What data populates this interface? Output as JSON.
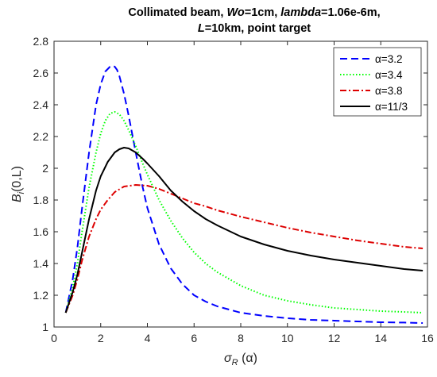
{
  "chart_data": {
    "type": "line",
    "title_line1": [
      "Collimated beam, ",
      "Wo",
      "=1cm, ",
      "lambda",
      "=1.06e-6m,"
    ],
    "title_line2": [
      "L",
      "=10km, point target"
    ],
    "xlabel": {
      "main": "σ",
      "sub": "R",
      "rest": " (α)"
    },
    "ylabel": {
      "main": "B",
      "sub": "i",
      "rest": "(0,L)"
    },
    "xlim": [
      0,
      16
    ],
    "ylim": [
      1,
      2.8
    ],
    "xticks": [
      "0",
      "2",
      "4",
      "6",
      "8",
      "10",
      "12",
      "14",
      "16"
    ],
    "yticks": [
      "1",
      "1.2",
      "1.4",
      "1.6",
      "1.8",
      "2",
      "2.2",
      "2.4",
      "2.6",
      "2.8"
    ],
    "grid": false,
    "legend_position": "top-right",
    "series": [
      {
        "name": "α=3.2",
        "color": "#0000ff",
        "style": "dashed",
        "x": [
          0.5,
          0.8,
          1.0,
          1.2,
          1.5,
          1.8,
          2.0,
          2.2,
          2.4,
          2.5,
          2.6,
          2.7,
          2.8,
          3.0,
          3.2,
          3.5,
          3.8,
          4.0,
          4.5,
          5.0,
          5.5,
          6.0,
          6.5,
          7.0,
          8.0,
          9.0,
          10.0,
          11.0,
          12.0,
          13.0,
          14.0,
          15.0,
          15.8
        ],
        "y": [
          1.09,
          1.3,
          1.5,
          1.75,
          2.1,
          2.4,
          2.53,
          2.61,
          2.64,
          2.645,
          2.64,
          2.62,
          2.58,
          2.47,
          2.33,
          2.1,
          1.88,
          1.75,
          1.52,
          1.37,
          1.27,
          1.2,
          1.16,
          1.13,
          1.09,
          1.07,
          1.055,
          1.045,
          1.04,
          1.035,
          1.03,
          1.028,
          1.025
        ]
      },
      {
        "name": "α=3.4",
        "color": "#00ff00",
        "style": "dotted",
        "x": [
          0.5,
          0.8,
          1.0,
          1.2,
          1.5,
          1.8,
          2.0,
          2.2,
          2.4,
          2.6,
          2.8,
          3.0,
          3.2,
          3.5,
          3.8,
          4.0,
          4.5,
          5.0,
          5.5,
          6.0,
          6.5,
          7.0,
          8.0,
          9.0,
          10.0,
          11.0,
          12.0,
          13.0,
          14.0,
          15.0,
          15.8
        ],
        "y": [
          1.09,
          1.25,
          1.4,
          1.6,
          1.88,
          2.1,
          2.22,
          2.3,
          2.345,
          2.355,
          2.34,
          2.3,
          2.24,
          2.14,
          2.03,
          1.96,
          1.8,
          1.67,
          1.56,
          1.47,
          1.4,
          1.345,
          1.26,
          1.2,
          1.165,
          1.14,
          1.12,
          1.11,
          1.1,
          1.095,
          1.09
        ]
      },
      {
        "name": "α=3.8",
        "color": "#dd0000",
        "style": "dashdot",
        "x": [
          0.5,
          0.8,
          1.0,
          1.2,
          1.5,
          1.8,
          2.0,
          2.3,
          2.6,
          3.0,
          3.5,
          4.0,
          4.5,
          5.0,
          5.5,
          6.0,
          6.5,
          7.0,
          8.0,
          9.0,
          10.0,
          11.0,
          12.0,
          13.0,
          14.0,
          15.0,
          15.8
        ],
        "y": [
          1.09,
          1.2,
          1.3,
          1.42,
          1.57,
          1.68,
          1.74,
          1.8,
          1.85,
          1.885,
          1.895,
          1.89,
          1.87,
          1.84,
          1.81,
          1.78,
          1.76,
          1.735,
          1.695,
          1.66,
          1.625,
          1.595,
          1.57,
          1.545,
          1.525,
          1.505,
          1.495
        ]
      },
      {
        "name": "α=11/3",
        "color": "#000000",
        "style": "solid",
        "x": [
          0.5,
          0.8,
          1.0,
          1.2,
          1.5,
          1.8,
          2.0,
          2.3,
          2.6,
          2.8,
          3.0,
          3.2,
          3.5,
          3.8,
          4.0,
          4.5,
          5.0,
          5.5,
          6.0,
          6.5,
          7.0,
          8.0,
          9.0,
          10.0,
          11.0,
          12.0,
          13.0,
          14.0,
          15.0,
          15.8
        ],
        "y": [
          1.09,
          1.22,
          1.33,
          1.47,
          1.68,
          1.86,
          1.95,
          2.04,
          2.1,
          2.12,
          2.13,
          2.125,
          2.1,
          2.06,
          2.03,
          1.95,
          1.86,
          1.79,
          1.73,
          1.68,
          1.64,
          1.57,
          1.52,
          1.48,
          1.45,
          1.425,
          1.405,
          1.385,
          1.365,
          1.355
        ]
      }
    ]
  }
}
